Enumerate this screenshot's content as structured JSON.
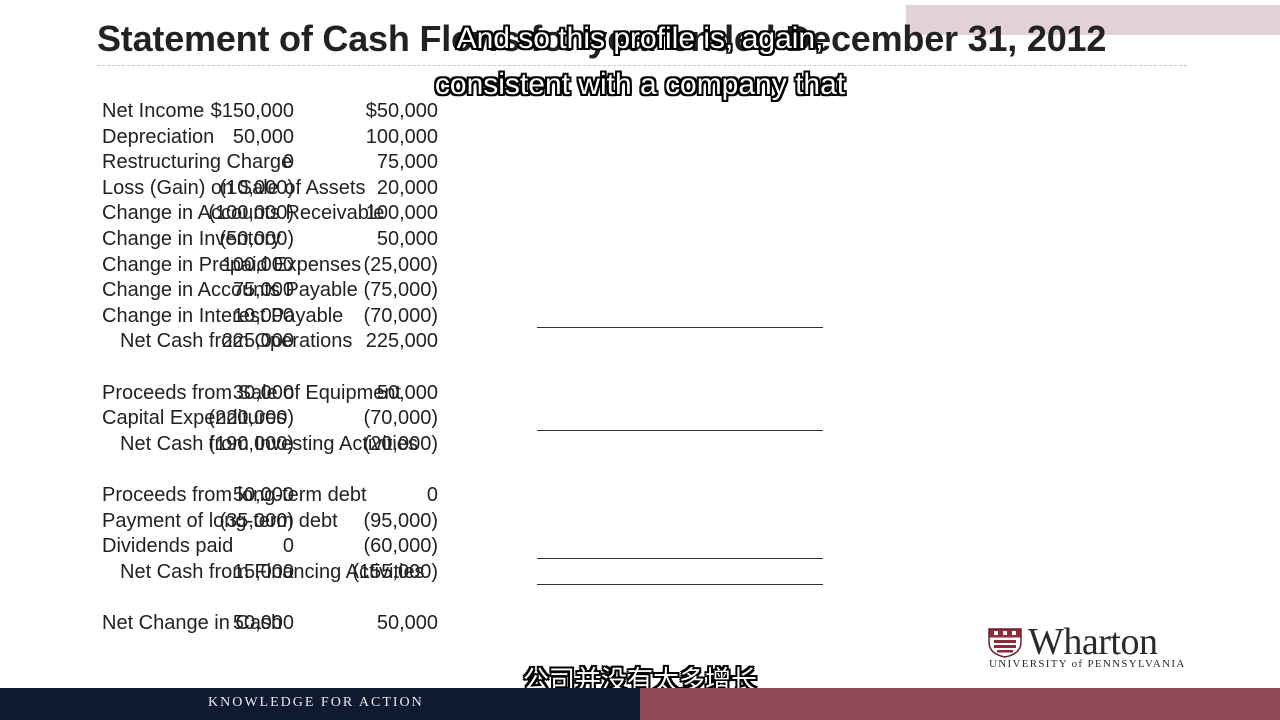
{
  "slide": {
    "title": "Statement of Cash Flows for year ended December 31, 2012",
    "colors": {
      "footer_navy": "#0f1a30",
      "footer_maroon": "#8e4a56",
      "header_box": "#e3cfd4"
    }
  },
  "table": {
    "rows": [
      {
        "label": "Net Income",
        "c1": "$150,000",
        "c2": "$50,000"
      },
      {
        "label": "Depreciation",
        "c1": "50,000",
        "c2": "100,000"
      },
      {
        "label": "Restructuring Charge",
        "c1": "0",
        "c2": "75,000"
      },
      {
        "label": "Loss (Gain) on Sale of Assets",
        "c1": "(10,000)",
        "c2": "20,000"
      },
      {
        "label": "Change in Accounts Receivable",
        "c1": "(100,000)",
        "c2": "100,000"
      },
      {
        "label": "Change in Inventory",
        "c1": "(50,000)",
        "c2": "50,000"
      },
      {
        "label": "Change in Prepaid Expenses",
        "c1": "100,000",
        "c2": "(25,000)"
      },
      {
        "label": "Change in Accounts Payable",
        "c1": "75,000",
        "c2": "(75,000)"
      },
      {
        "label": "Change in Interest Payable",
        "c1": "10,000",
        "c2": "(70,000)"
      },
      {
        "label": "Net Cash from Operations",
        "c1": "225,000",
        "c2": "225,000"
      },
      {
        "label": "Proceeds from Sale of Equipment",
        "c1": "30,000",
        "c2": "50,000"
      },
      {
        "label": "Capital Expenditures",
        "c1": "(220,000)",
        "c2": "(70,000)"
      },
      {
        "label": "Net Cash from Investing Activities",
        "c1": "(190,000)",
        "c2": "(20,000)"
      },
      {
        "label": "Proceeds from long-term debt",
        "c1": "50,000",
        "c2": "0"
      },
      {
        "label": "Payment of long-term debt",
        "c1": "(35,000)",
        "c2": "(95,000)"
      },
      {
        "label": "Dividends paid",
        "c1": "0",
        "c2": "(60,000)"
      },
      {
        "label": "Net Cash from Financing Activities",
        "c1": "15,000",
        "c2": "(155,000)"
      },
      {
        "label": "Net Change in Cash",
        "c1": "50,000",
        "c2": "50,000"
      }
    ]
  },
  "subtitles": {
    "english_line1": "And so this profile is, again,",
    "english_line2": "consistent with a company that",
    "chinese": "公司并没有太多增长"
  },
  "logo": {
    "wordmark": "Wharton",
    "university_line": "UNIVERSITY of PENNSYLVANIA"
  },
  "footer": {
    "tagline": "KNOWLEDGE FOR ACTION"
  }
}
